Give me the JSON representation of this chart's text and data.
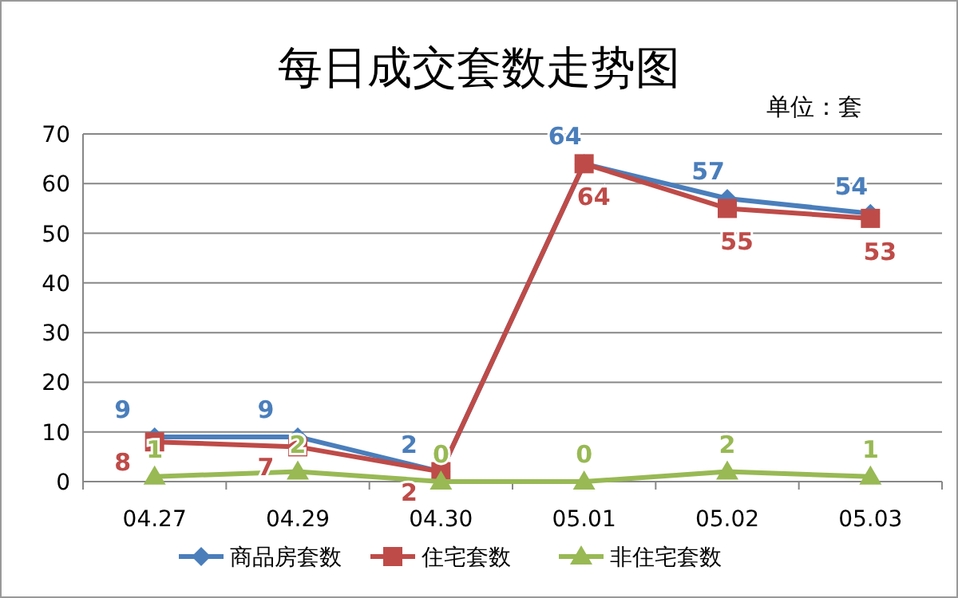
{
  "chart_data": {
    "type": "line",
    "title": "每日成交套数走势图",
    "annotations": [
      "单位：套"
    ],
    "categories": [
      "04.27",
      "04.29",
      "04.30",
      "05.01",
      "05.02",
      "05.03"
    ],
    "ylim": [
      0,
      70
    ],
    "yticks": [
      0,
      10,
      20,
      30,
      40,
      50,
      60,
      70
    ],
    "grid": "y",
    "legend": "bottom",
    "data_labels": true,
    "series": [
      {
        "name": "商品房套数",
        "color": "#4a7ebb",
        "marker": "diamond",
        "values": [
          9,
          9,
          2,
          64,
          57,
          54
        ]
      },
      {
        "name": "住宅套数",
        "color": "#be4b48",
        "marker": "square",
        "values": [
          8,
          7,
          2,
          64,
          55,
          53
        ]
      },
      {
        "name": "非住宅套数",
        "color": "#98b954",
        "marker": "triangle",
        "values": [
          1,
          2,
          0,
          0,
          2,
          1
        ]
      }
    ]
  }
}
